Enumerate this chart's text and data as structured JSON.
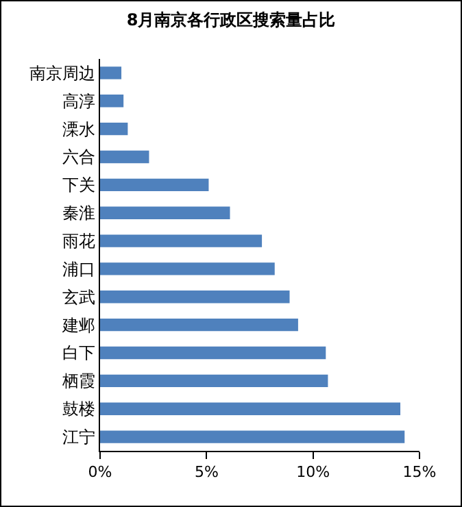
{
  "chart_data": {
    "type": "bar",
    "orientation": "horizontal",
    "title": "8月南京各行政区搜索量占比",
    "categories": [
      "南京周边",
      "高淳",
      "溧水",
      "六合",
      "下关",
      "秦淮",
      "雨花",
      "浦口",
      "玄武",
      "建邺",
      "白下",
      "栖霞",
      "鼓楼",
      "江宁"
    ],
    "values": [
      1.0,
      1.1,
      1.3,
      2.3,
      5.1,
      6.1,
      7.6,
      8.2,
      8.9,
      9.3,
      10.6,
      10.7,
      14.1,
      14.3
    ],
    "color": "#4f81bd",
    "xlim": [
      0,
      15
    ],
    "xticks": [
      {
        "value": 0,
        "label": "0%"
      },
      {
        "value": 5,
        "label": "5%"
      },
      {
        "value": 10,
        "label": "10%"
      },
      {
        "value": 15,
        "label": "15%"
      }
    ],
    "grid": false
  }
}
